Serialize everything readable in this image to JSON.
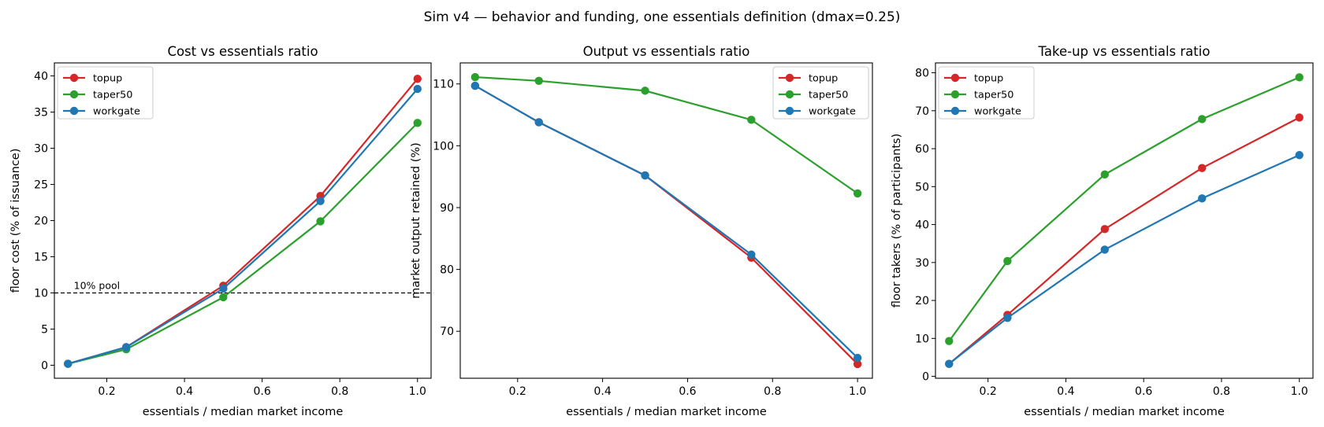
{
  "figure": {
    "suptitle": "Sim v4 — behavior and funding, one essentials definition (dmax=0.25)"
  },
  "colors": {
    "topup": "#d62728",
    "taper50": "#2ca02c",
    "workgate": "#1f77b4",
    "reference_line": "#000000"
  },
  "chart_data": [
    {
      "type": "line",
      "title": "Cost vs essentials ratio",
      "xlabel": "essentials / median market income",
      "ylabel": "floor cost (% of issuance)",
      "xlim": [
        0.065,
        1.035
      ],
      "ylim": [
        -1.8,
        41.8
      ],
      "xticks": [
        0.2,
        0.4,
        0.6,
        0.8,
        1.0
      ],
      "xtick_labels": [
        "0.2",
        "0.4",
        "0.6",
        "0.8",
        "1.0"
      ],
      "yticks": [
        0,
        5,
        10,
        15,
        20,
        25,
        30,
        35,
        40
      ],
      "ytick_labels": [
        "0",
        "5",
        "10",
        "15",
        "20",
        "25",
        "30",
        "35",
        "40"
      ],
      "grid": false,
      "legend": "upper left",
      "x": [
        0.1,
        0.25,
        0.5,
        0.75,
        1.0
      ],
      "series": [
        {
          "name": "topup",
          "color_key": "topup",
          "values": [
            0.2,
            2.5,
            11.0,
            23.4,
            39.6
          ]
        },
        {
          "name": "taper50",
          "color_key": "taper50",
          "values": [
            0.2,
            2.2,
            9.4,
            19.9,
            33.5
          ]
        },
        {
          "name": "workgate",
          "color_key": "workgate",
          "values": [
            0.2,
            2.5,
            10.6,
            22.7,
            38.2
          ]
        }
      ],
      "hlines": [
        {
          "y": 10,
          "style": "dashed",
          "label": "10% pool"
        }
      ]
    },
    {
      "type": "line",
      "title": "Output vs essentials ratio",
      "xlabel": "essentials / median market income",
      "ylabel": "market output retained (%)",
      "xlim": [
        0.065,
        1.035
      ],
      "ylim": [
        62.4,
        113.4
      ],
      "xticks": [
        0.2,
        0.4,
        0.6,
        0.8,
        1.0
      ],
      "xtick_labels": [
        "0.2",
        "0.4",
        "0.6",
        "0.8",
        "1.0"
      ],
      "yticks": [
        70,
        80,
        90,
        100,
        110
      ],
      "ytick_labels": [
        "70",
        "80",
        "90",
        "100",
        "110"
      ],
      "grid": false,
      "legend": "upper right",
      "x": [
        0.1,
        0.25,
        0.5,
        0.75,
        1.0
      ],
      "series": [
        {
          "name": "topup",
          "color_key": "topup",
          "values": [
            109.7,
            103.8,
            95.2,
            81.9,
            64.7
          ]
        },
        {
          "name": "taper50",
          "color_key": "taper50",
          "values": [
            111.1,
            110.5,
            108.9,
            104.2,
            92.3
          ]
        },
        {
          "name": "workgate",
          "color_key": "workgate",
          "values": [
            109.7,
            103.8,
            95.2,
            82.4,
            65.7
          ]
        }
      ]
    },
    {
      "type": "line",
      "title": "Take-up vs essentials ratio",
      "xlabel": "essentials / median market income",
      "ylabel": "floor takers (% of participants)",
      "xlim": [
        0.065,
        1.035
      ],
      "ylim": [
        -0.5,
        82.6
      ],
      "xticks": [
        0.2,
        0.4,
        0.6,
        0.8,
        1.0
      ],
      "xtick_labels": [
        "0.2",
        "0.4",
        "0.6",
        "0.8",
        "1.0"
      ],
      "yticks": [
        0,
        10,
        20,
        30,
        40,
        50,
        60,
        70,
        80
      ],
      "ytick_labels": [
        "0",
        "10",
        "20",
        "30",
        "40",
        "50",
        "60",
        "70",
        "80"
      ],
      "grid": false,
      "legend": "upper left",
      "x": [
        0.1,
        0.25,
        0.5,
        0.75,
        1.0
      ],
      "series": [
        {
          "name": "topup",
          "color_key": "topup",
          "values": [
            3.3,
            16.2,
            38.8,
            54.9,
            68.2
          ]
        },
        {
          "name": "taper50",
          "color_key": "taper50",
          "values": [
            9.3,
            30.4,
            53.2,
            67.8,
            78.8
          ]
        },
        {
          "name": "workgate",
          "color_key": "workgate",
          "values": [
            3.3,
            15.4,
            33.4,
            46.9,
            58.3
          ]
        }
      ]
    }
  ]
}
